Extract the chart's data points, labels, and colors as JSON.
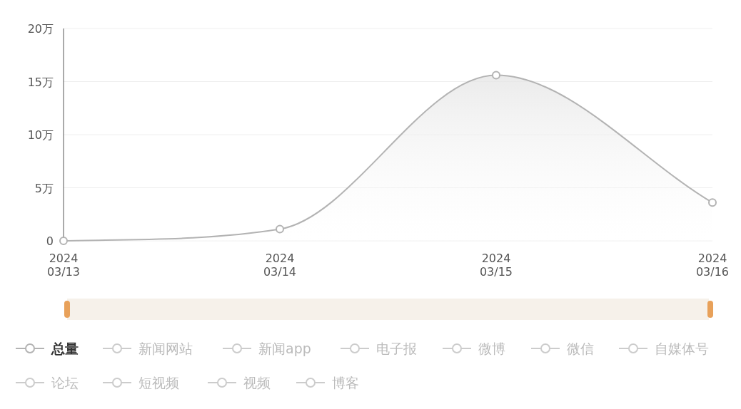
{
  "chart_data": {
    "type": "area",
    "categories": [
      "2024\n03/13",
      "2024\n03/14",
      "2024\n03/15",
      "2024\n03/16"
    ],
    "series": [
      {
        "name": "总量",
        "color": "#b3b3b3",
        "values": [
          0,
          1.1,
          15.6,
          3.6
        ]
      },
      {
        "name": "新闻网站",
        "color": "#cccccc",
        "values": [
          null,
          null,
          null,
          null
        ]
      },
      {
        "name": "新闻app",
        "color": "#cccccc",
        "values": [
          null,
          null,
          null,
          null
        ]
      },
      {
        "name": "电子报",
        "color": "#cccccc",
        "values": [
          null,
          null,
          null,
          null
        ]
      },
      {
        "name": "微博",
        "color": "#cccccc",
        "values": [
          null,
          null,
          null,
          null
        ]
      },
      {
        "name": "微信",
        "color": "#cccccc",
        "values": [
          null,
          null,
          null,
          null
        ]
      },
      {
        "name": "自媒体号",
        "color": "#cccccc",
        "values": [
          null,
          null,
          null,
          null
        ]
      },
      {
        "name": "论坛",
        "color": "#cccccc",
        "values": [
          null,
          null,
          null,
          null
        ]
      },
      {
        "name": "短视频",
        "color": "#cccccc",
        "values": [
          null,
          null,
          null,
          null
        ]
      },
      {
        "name": "视频",
        "color": "#cccccc",
        "values": [
          null,
          null,
          null,
          null
        ]
      },
      {
        "name": "博客",
        "color": "#cccccc",
        "values": [
          null,
          null,
          null,
          null
        ]
      }
    ],
    "ylim": [
      0,
      20
    ],
    "yticks": [
      0,
      {
        "value": 5,
        "label": "5万"
      },
      {
        "value": 10,
        "label": "10万"
      },
      {
        "value": 15,
        "label": "15万"
      },
      {
        "value": 20,
        "label": "20万"
      }
    ],
    "grid": "y",
    "legend": "bottom",
    "marker": "circle",
    "line_style": "solid"
  }
}
